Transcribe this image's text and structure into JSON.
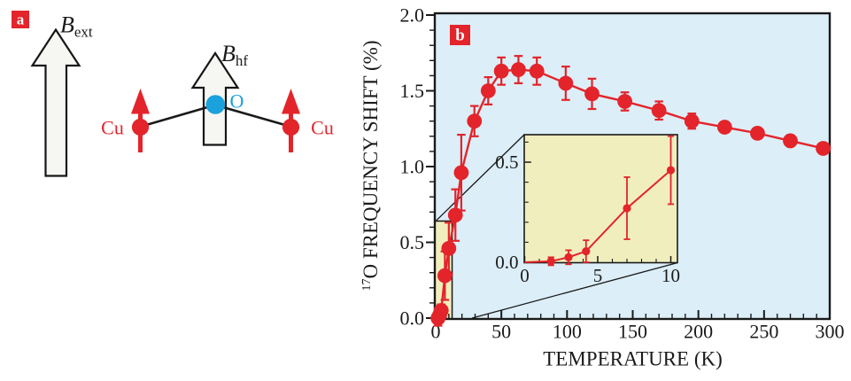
{
  "panel_a": {
    "badge": "a",
    "b_ext": {
      "base": "B",
      "sub": "ext"
    },
    "b_hf": {
      "base": "B",
      "sub": "hf"
    },
    "cu_left": "Cu",
    "cu_right": "Cu",
    "oxygen": "O"
  },
  "panel_b": {
    "badge": "b"
  },
  "chart_data": [
    {
      "id": "main",
      "type": "line",
      "title": "",
      "xlabel": "TEMPERATURE (K)",
      "ylabel": {
        "sup": "17",
        "text": "O FREQUENCY SHIFT (%)"
      },
      "xlim": [
        0,
        300
      ],
      "ylim": [
        0,
        2.0
      ],
      "x_major_ticks": [
        0,
        50,
        100,
        150,
        200,
        250,
        300
      ],
      "x_tick_labels": [
        "0",
        "50",
        "100",
        "150",
        "200",
        "250",
        "300"
      ],
      "x_minor_step": 10,
      "y_major_ticks": [
        0,
        0.5,
        1.0,
        1.5,
        2.0
      ],
      "y_tick_labels": [
        "0.0",
        "0.5",
        "1.0",
        "1.5",
        "2.0"
      ],
      "y_minor_step": 0.1,
      "grid": false,
      "legend": "none",
      "zoom_region": {
        "x": [
          0,
          12.5
        ],
        "y": [
          0,
          0.64
        ]
      },
      "series": [
        {
          "name": "17O frequency shift",
          "color": "#e3242b",
          "x": [
            1.8,
            3,
            4.2,
            7,
            10,
            15,
            19.5,
            29.5,
            40,
            50,
            63,
            77,
            99,
            119,
            144,
            170,
            195,
            220,
            245,
            270,
            295
          ],
          "y": [
            0.0,
            0.02,
            0.05,
            0.28,
            0.46,
            0.68,
            0.96,
            1.3,
            1.5,
            1.63,
            1.64,
            1.63,
            1.55,
            1.48,
            1.43,
            1.37,
            1.3,
            1.26,
            1.22,
            1.17,
            1.12
          ],
          "yerr": [
            0.05,
            0.04,
            0.04,
            0.16,
            0.17,
            0.17,
            0.25,
            0.1,
            0.09,
            0.09,
            0.09,
            0.09,
            0.11,
            0.1,
            0.06,
            0.06,
            0.05,
            0,
            0,
            0,
            0
          ]
        }
      ]
    },
    {
      "id": "inset",
      "type": "line",
      "title": "",
      "xlabel": "",
      "ylabel": "",
      "xlim": [
        0,
        10.5
      ],
      "ylim": [
        0,
        0.64
      ],
      "x_major_ticks": [
        0,
        5,
        10
      ],
      "x_tick_labels": [
        "0",
        "5",
        "10"
      ],
      "x_minor_step": 1,
      "y_major_ticks": [
        0,
        0.5
      ],
      "y_tick_labels": [
        "0.0",
        "0.5"
      ],
      "y_minor_step": 0.1,
      "grid": false,
      "legend": "none",
      "line_start": [
        0,
        0
      ],
      "series": [
        {
          "name": "17O frequency shift (low temperature detail)",
          "color": "#e3242b",
          "x": [
            1.8,
            3,
            4.2,
            7,
            10
          ],
          "y": [
            0.005,
            0.025,
            0.055,
            0.27,
            0.46
          ],
          "yerr": [
            0.02,
            0.035,
            0.055,
            0.155,
            0.17
          ]
        }
      ]
    }
  ],
  "colors": {
    "accent_red": "#e3242b",
    "oxygen_blue": "#1ba1dc",
    "plot_bg": "#dceef8",
    "inset_bg": "#f1eebe",
    "frame": "#1a1a1a"
  }
}
